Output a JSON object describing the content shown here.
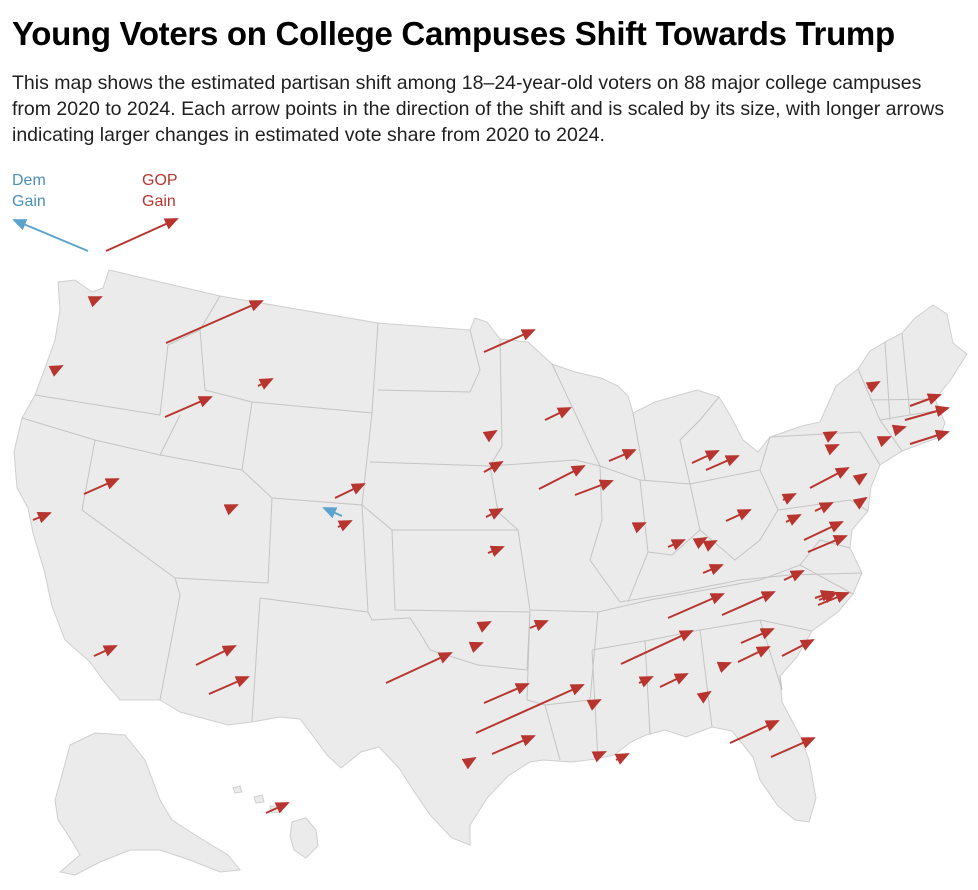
{
  "title": "Young Voters on College Campuses Shift Towards Trump",
  "subtitle": "This map shows the estimated partisan shift among 18–24-year-old voters on 88 major college campuses from 2020 to 2024. Each arrow points in the direction of the shift and is scaled by its size, with longer arrows indicating larger changes in estimated vote share from 2020 to 2024.",
  "legend": {
    "dem_label": "Dem\nGain",
    "gop_label": "GOP\nGain"
  },
  "colors": {
    "dem": "#5aa3cc",
    "gop": "#b8352f",
    "land": "#ebebeb",
    "border": "#bdbdbd"
  },
  "map": {
    "region": "United States (lower 48, Alaska, Hawaii)",
    "campus_count": 88,
    "period": "2020 to 2024",
    "arrows_shown": [
      {
        "party": "gop",
        "region": "Pacific Northwest"
      },
      {
        "party": "gop",
        "region": "Mountain West"
      },
      {
        "party": "dem",
        "region": "Colorado"
      },
      {
        "party": "gop",
        "region": "Midwest"
      },
      {
        "party": "gop",
        "region": "South"
      },
      {
        "party": "gop",
        "region": "Northeast"
      },
      {
        "party": "gop",
        "region": "Hawaii"
      }
    ]
  }
}
